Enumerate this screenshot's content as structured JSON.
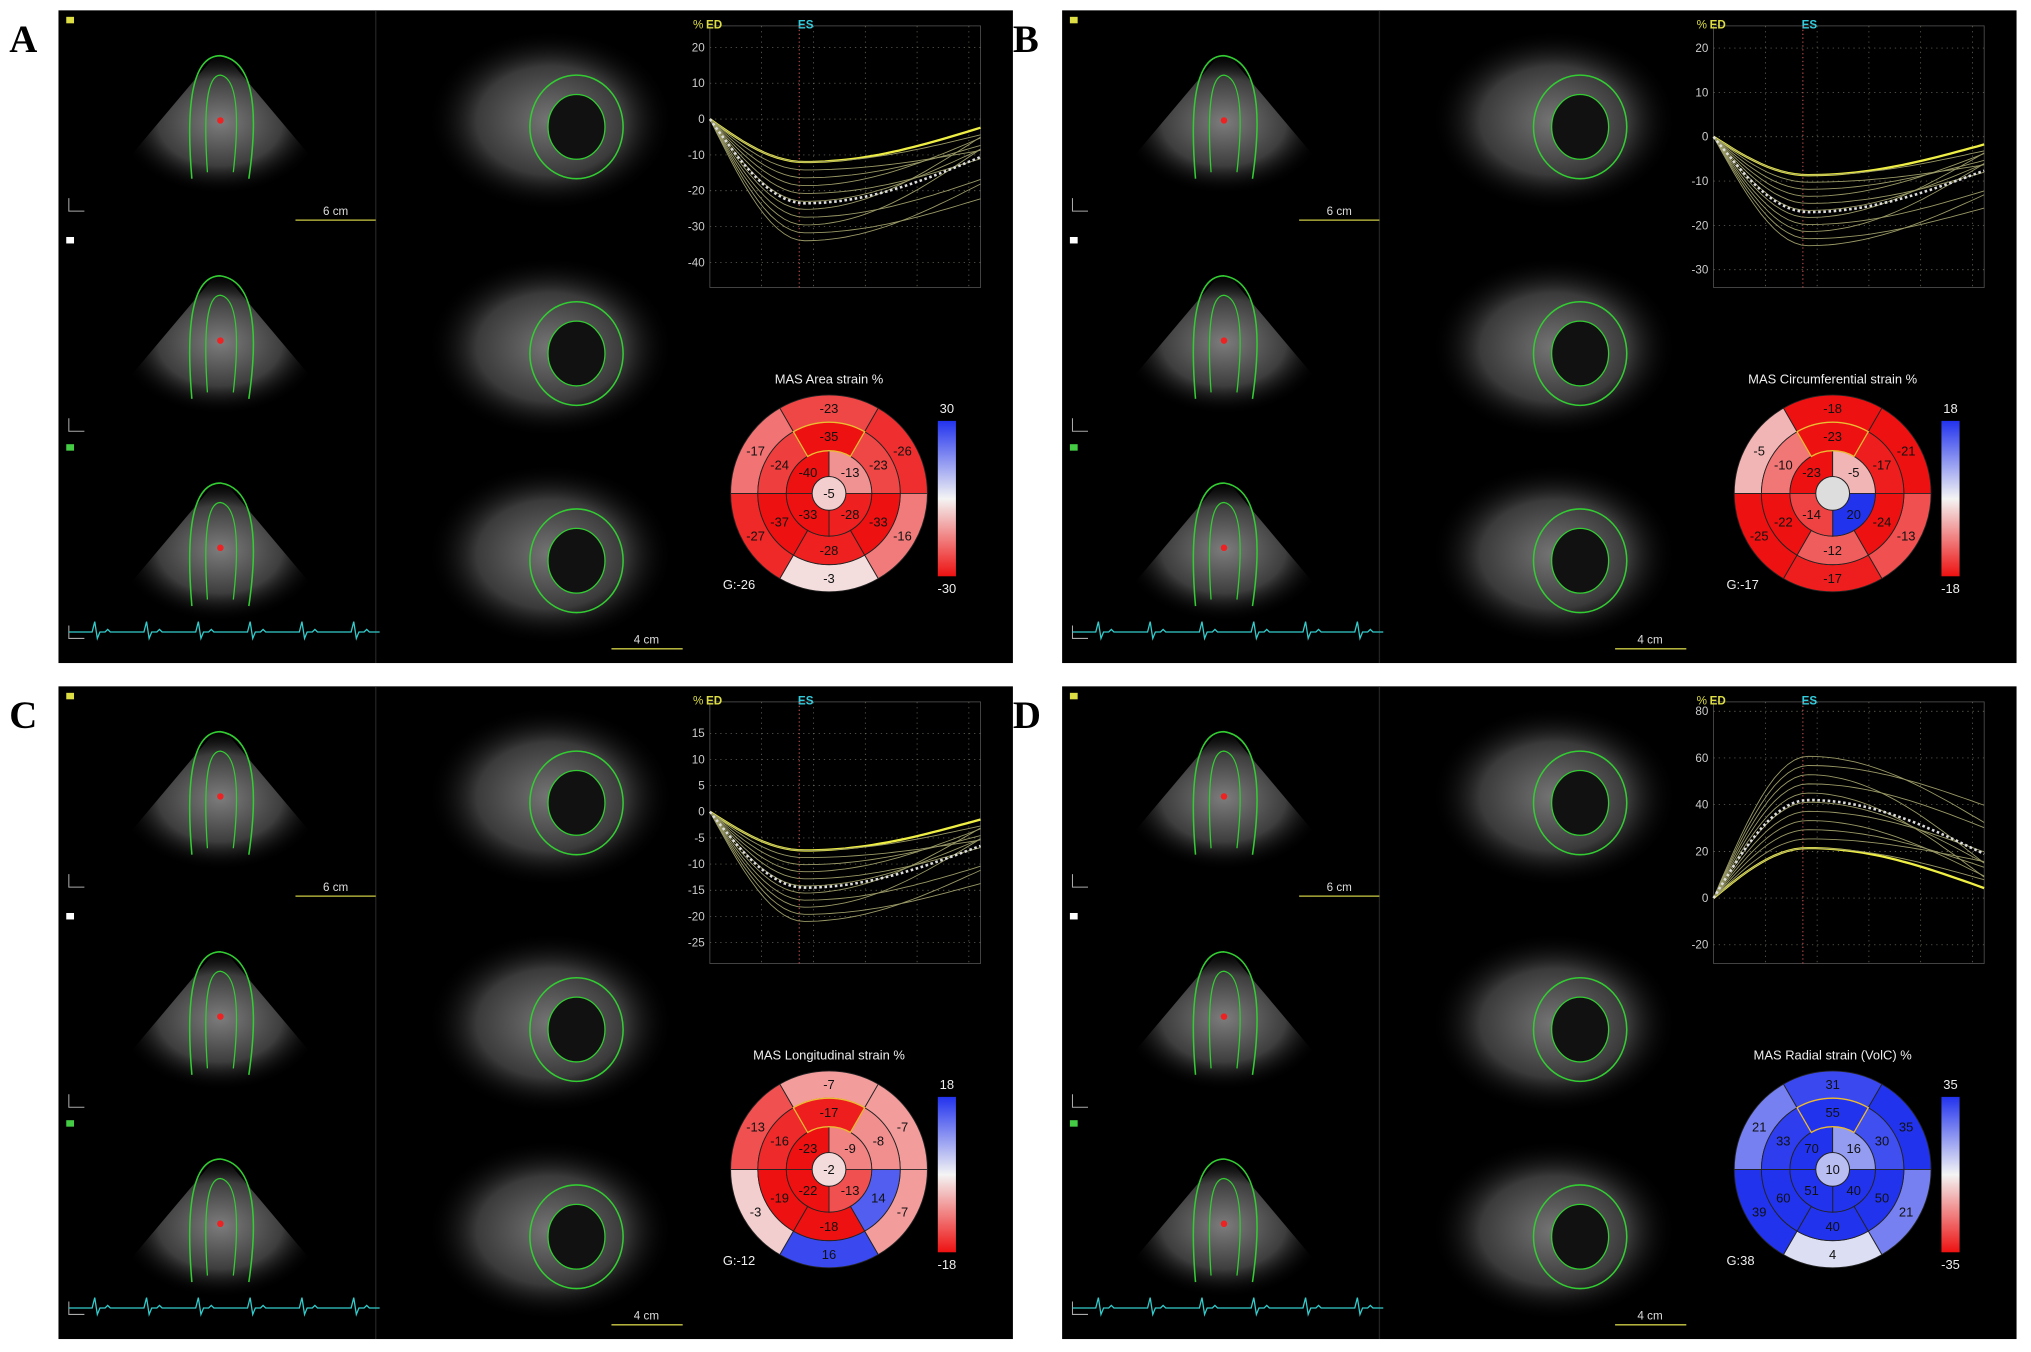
{
  "panels": [
    {
      "letter": "A",
      "scale_top": "6 cm",
      "scale_bottom": "4 cm",
      "graph": {
        "unit": "%",
        "ed": "ED",
        "es": "ES",
        "yticks": [
          20,
          10,
          0,
          -10,
          -20,
          -30,
          -40
        ],
        "ylim": [
          -47,
          26
        ]
      },
      "bullseye": {
        "title": "MAS Area strain %",
        "segments": [
          -23,
          -26,
          -16,
          -3,
          -27,
          -17,
          -35,
          -23,
          -33,
          -28,
          -37,
          -24,
          -40,
          -13,
          -28,
          -33,
          -5
        ],
        "colorbar_max": 30,
        "colorbar_min": -30,
        "global": "G:-26"
      }
    },
    {
      "letter": "B",
      "scale_top": "6 cm",
      "scale_bottom": "4 cm",
      "graph": {
        "unit": "%",
        "ed": "ED",
        "es": "ES",
        "yticks": [
          20,
          10,
          0,
          -10,
          -20,
          -30
        ],
        "ylim": [
          -34,
          25
        ]
      },
      "bullseye": {
        "title": "MAS Circumferential strain %",
        "segments": [
          -18,
          -21,
          -13,
          -17,
          -25,
          -5,
          -23,
          -17,
          -24,
          -12,
          -22,
          -10,
          -23,
          -5,
          20,
          -14,
          null
        ],
        "colorbar_max": 18,
        "colorbar_min": -18,
        "global": "G:-17"
      }
    },
    {
      "letter": "C",
      "scale_top": "6 cm",
      "scale_bottom": "4 cm",
      "graph": {
        "unit": "%",
        "ed": "ED",
        "es": "ES",
        "yticks": [
          15,
          10,
          5,
          0,
          -5,
          -10,
          -15,
          -20,
          -25
        ],
        "ylim": [
          -29,
          21
        ]
      },
      "bullseye": {
        "title": "MAS Longitudinal strain %",
        "segments": [
          -7,
          -7,
          -7,
          16,
          -3,
          -13,
          -17,
          -8,
          14,
          -18,
          -19,
          -16,
          -23,
          -9,
          -13,
          -22,
          -2
        ],
        "colorbar_max": 18,
        "colorbar_min": -18,
        "global": "G:-12"
      }
    },
    {
      "letter": "D",
      "scale_top": "6 cm",
      "scale_bottom": "4 cm",
      "graph": {
        "unit": "%",
        "ed": "ED",
        "es": "ES",
        "yticks": [
          80,
          60,
          40,
          20,
          0,
          -20
        ],
        "ylim": [
          -28,
          84
        ]
      },
      "bullseye": {
        "title": "MAS Radial strain (VolC) %",
        "segments": [
          31,
          35,
          21,
          4,
          39,
          21,
          55,
          30,
          50,
          40,
          60,
          33,
          70,
          16,
          40,
          51,
          10
        ],
        "colorbar_max": 35,
        "colorbar_min": -35,
        "global": "G:38"
      }
    }
  ]
}
